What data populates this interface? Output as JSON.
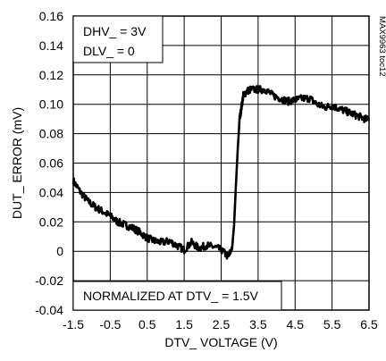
{
  "chart_data": {
    "type": "line",
    "title": "",
    "xlabel": "DTV_ VOLTAGE (V)",
    "ylabel": "DUT_ ERROR (mV)",
    "xlim": [
      -1.5,
      6.5
    ],
    "ylim": [
      -0.04,
      0.16
    ],
    "xticks": [
      -1.5,
      -0.5,
      0.5,
      1.5,
      2.5,
      3.5,
      4.5,
      5.5,
      6.5
    ],
    "xtick_labels": [
      "-1.5",
      "-0.5",
      "0.5",
      "1.5",
      "2.5",
      "3.5",
      "4.5",
      "5.5",
      "6.5"
    ],
    "yticks": [
      -0.04,
      -0.02,
      0,
      0.02,
      0.04,
      0.06,
      0.08,
      0.1,
      0.12,
      0.14,
      0.16
    ],
    "ytick_labels": [
      "-0.04",
      "-0.02",
      "0",
      "0.02",
      "0.04",
      "0.06",
      "0.08",
      "0.10",
      "0.12",
      "0.14",
      "0.16"
    ],
    "grid": true,
    "annotations": [
      "DHV_ = 3V",
      "DLV_ = 0",
      "NORMALIZED AT DTV_ = 1.5V"
    ],
    "side_label": "MAX9963 toc12",
    "line_color": "#000000",
    "series": [
      {
        "x": [
          -1.5,
          -1.3,
          -1.1,
          -0.9,
          -0.7,
          -0.5,
          -0.3,
          -0.1,
          0.1,
          0.3,
          0.5,
          0.7,
          0.9,
          1.1,
          1.3,
          1.5,
          1.7,
          1.9,
          2.1,
          2.3,
          2.5,
          2.7,
          2.8,
          2.85,
          2.9,
          2.95,
          3.0,
          3.05,
          3.1,
          3.2,
          3.3,
          3.5,
          3.7,
          3.9,
          4.1,
          4.3,
          4.5,
          4.7,
          4.9,
          5.1,
          5.3,
          5.5,
          5.7,
          5.9,
          6.1,
          6.3,
          6.5
        ],
        "y": [
          0.048,
          0.04,
          0.034,
          0.03,
          0.027,
          0.024,
          0.02,
          0.018,
          0.016,
          0.013,
          0.009,
          0.007,
          0.006,
          0.007,
          0.004,
          0.001,
          0.006,
          0.002,
          0.004,
          0.003,
          0.001,
          -0.004,
          0.003,
          0.018,
          0.045,
          0.07,
          0.09,
          0.098,
          0.106,
          0.109,
          0.11,
          0.11,
          0.11,
          0.106,
          0.104,
          0.102,
          0.103,
          0.104,
          0.104,
          0.1,
          0.098,
          0.099,
          0.097,
          0.095,
          0.093,
          0.091,
          0.089
        ]
      }
    ]
  }
}
